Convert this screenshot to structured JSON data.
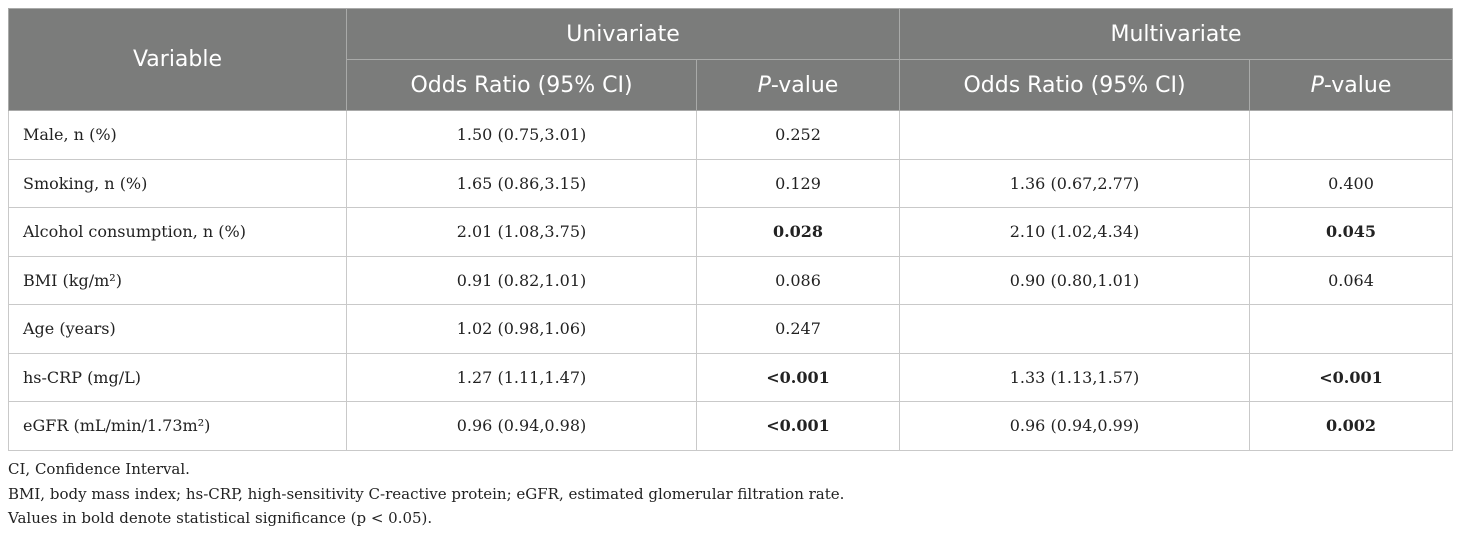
{
  "table": {
    "header": {
      "variable": "Variable",
      "univariate": "Univariate",
      "multivariate": "Multivariate",
      "or_label": "Odds Ratio (95% CI)",
      "p_italic": "P",
      "p_suffix": "-value"
    },
    "rows": [
      {
        "variable": "Male, n (%)",
        "uni_or": "1.50 (0.75,3.01)",
        "uni_p": "0.252",
        "uni_p_bold": false,
        "multi_or": "",
        "multi_p": "",
        "multi_p_bold": false
      },
      {
        "variable": "Smoking, n (%)",
        "uni_or": "1.65 (0.86,3.15)",
        "uni_p": "0.129",
        "uni_p_bold": false,
        "multi_or": "1.36 (0.67,2.77)",
        "multi_p": "0.400",
        "multi_p_bold": false
      },
      {
        "variable": "Alcohol consumption, n (%)",
        "uni_or": "2.01 (1.08,3.75)",
        "uni_p": "0.028",
        "uni_p_bold": true,
        "multi_or": "2.10 (1.02,4.34)",
        "multi_p": "0.045",
        "multi_p_bold": true
      },
      {
        "variable": "BMI (kg/m²)",
        "uni_or": "0.91 (0.82,1.01)",
        "uni_p": "0.086",
        "uni_p_bold": false,
        "multi_or": "0.90 (0.80,1.01)",
        "multi_p": "0.064",
        "multi_p_bold": false
      },
      {
        "variable": "Age (years)",
        "uni_or": "1.02 (0.98,1.06)",
        "uni_p": "0.247",
        "uni_p_bold": false,
        "multi_or": "",
        "multi_p": "",
        "multi_p_bold": false
      },
      {
        "variable": "hs-CRP (mg/L)",
        "uni_or": "1.27 (1.11,1.47)",
        "uni_p": "<0.001",
        "uni_p_bold": true,
        "multi_or": "1.33 (1.13,1.57)",
        "multi_p": "<0.001",
        "multi_p_bold": true
      },
      {
        "variable": "eGFR (mL/min/1.73m²)",
        "uni_or": "0.96 (0.94,0.98)",
        "uni_p": "<0.001",
        "uni_p_bold": true,
        "multi_or": "0.96 (0.94,0.99)",
        "multi_p": "0.002",
        "multi_p_bold": true
      }
    ]
  },
  "notes": [
    "CI, Confidence Interval.",
    "BMI, body mass index; hs-CRP, high-sensitivity C-reactive protein; eGFR, estimated glomerular filtration rate.",
    "Values in bold denote statistical significance (p < 0.05)."
  ]
}
